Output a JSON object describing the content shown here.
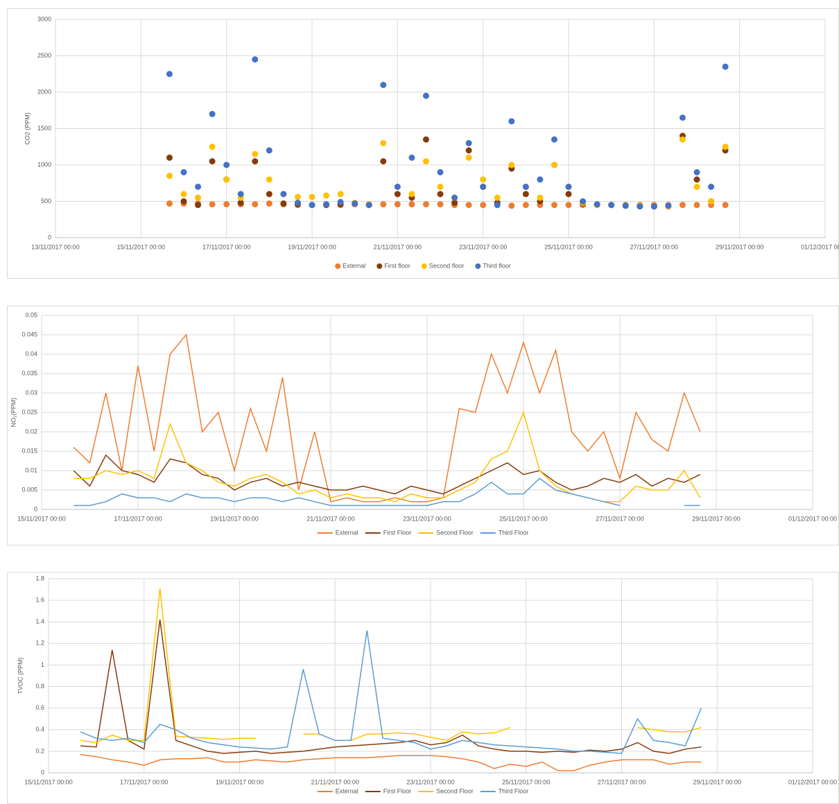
{
  "chart_data": [
    {
      "type": "scatter",
      "y_label": "CO2  (PPM)",
      "x": [
        "15/11/2017 16:00",
        "16/11/2017 00:00",
        "16/11/2017 08:00",
        "16/11/2017 16:00",
        "17/11/2017 00:00",
        "17/11/2017 08:00",
        "17/11/2017 16:00",
        "18/11/2017 00:00",
        "18/11/2017 08:00",
        "18/11/2017 16:00",
        "19/11/2017 00:00",
        "19/11/2017 08:00",
        "19/11/2017 16:00",
        "20/11/2017 00:00",
        "20/11/2017 08:00",
        "20/11/2017 16:00",
        "21/11/2017 00:00",
        "21/11/2017 08:00",
        "21/11/2017 16:00",
        "22/11/2017 00:00",
        "22/11/2017 08:00",
        "22/11/2017 16:00",
        "23/11/2017 00:00",
        "23/11/2017 08:00",
        "23/11/2017 16:00",
        "24/11/2017 00:00",
        "24/11/2017 08:00",
        "24/11/2017 16:00",
        "25/11/2017 00:00",
        "25/11/2017 08:00",
        "25/11/2017 16:00",
        "26/11/2017 00:00",
        "26/11/2017 08:00",
        "26/11/2017 16:00",
        "27/11/2017 00:00",
        "27/11/2017 08:00",
        "27/11/2017 16:00",
        "28/11/2017 00:00",
        "28/11/2017 08:00",
        "28/11/2017 16:00"
      ],
      "xlim": [
        "13/11/2017 00:00",
        "01/12/2017 00:00"
      ],
      "xticks": [
        "13/11/2017 00:00",
        "15/11/2017 00:00",
        "17/11/2017 00:00",
        "19/11/2017 00:00",
        "21/11/2017 00:00",
        "23/11/2017 00:00",
        "25/11/2017 00:00",
        "27/11/2017 00:00",
        "29/11/2017 00:00",
        "01/12/2017 00:00"
      ],
      "ylim": [
        0,
        3000
      ],
      "yticks": [
        0,
        500,
        1000,
        1500,
        2000,
        2500,
        3000
      ],
      "grid": true,
      "series": [
        {
          "name": "External",
          "color": "#ED7D31",
          "values": [
            470,
            470,
            470,
            460,
            460,
            460,
            460,
            470,
            460,
            450,
            450,
            450,
            450,
            460,
            460,
            460,
            460,
            460,
            460,
            460,
            450,
            450,
            450,
            450,
            440,
            450,
            450,
            450,
            450,
            450,
            450,
            450,
            450,
            450,
            450,
            450,
            450,
            450,
            450,
            450
          ]
        },
        {
          "name": "First floor",
          "color": "#843C0C",
          "values": [
            1100,
            500,
            450,
            1050,
            800,
            480,
            1050,
            600,
            470,
            460,
            450,
            450,
            460,
            470,
            450,
            1050,
            600,
            550,
            1350,
            600,
            480,
            1200,
            700,
            480,
            950,
            600,
            500,
            1000,
            600,
            470,
            450,
            450,
            440,
            440,
            430,
            430,
            1400,
            800,
            500,
            1200
          ]
        },
        {
          "name": "Second floor",
          "color": "#FFC000",
          "values": [
            850,
            600,
            550,
            1250,
            800,
            550,
            1150,
            800,
            600,
            560,
            560,
            580,
            600,
            480,
            460,
            1300,
            700,
            600,
            1050,
            700,
            550,
            1100,
            800,
            550,
            1000,
            700,
            550,
            1000,
            700,
            480,
            450,
            450,
            440,
            440,
            430,
            430,
            1350,
            700,
            500,
            1250
          ]
        },
        {
          "name": "Third floor",
          "color": "#4472C4",
          "values": [
            2250,
            900,
            700,
            1700,
            1000,
            600,
            2450,
            1200,
            600,
            480,
            450,
            460,
            490,
            470,
            450,
            2100,
            700,
            1100,
            1950,
            900,
            550,
            1300,
            700,
            450,
            1600,
            700,
            800,
            1350,
            700,
            500,
            460,
            450,
            440,
            430,
            430,
            440,
            1650,
            900,
            700,
            2350
          ]
        }
      ]
    },
    {
      "type": "line",
      "y_label": "NO₂(PPM)",
      "x": [
        "15/11/2017 16:00",
        "16/11/2017 00:00",
        "16/11/2017 08:00",
        "16/11/2017 16:00",
        "17/11/2017 00:00",
        "17/11/2017 08:00",
        "17/11/2017 16:00",
        "18/11/2017 00:00",
        "18/11/2017 08:00",
        "18/11/2017 16:00",
        "19/11/2017 00:00",
        "19/11/2017 08:00",
        "19/11/2017 16:00",
        "20/11/2017 00:00",
        "20/11/2017 08:00",
        "20/11/2017 16:00",
        "21/11/2017 00:00",
        "21/11/2017 08:00",
        "21/11/2017 16:00",
        "22/11/2017 00:00",
        "22/11/2017 08:00",
        "22/11/2017 16:00",
        "23/11/2017 00:00",
        "23/11/2017 08:00",
        "23/11/2017 16:00",
        "24/11/2017 00:00",
        "24/11/2017 08:00",
        "24/11/2017 16:00",
        "25/11/2017 00:00",
        "25/11/2017 08:00",
        "25/11/2017 16:00",
        "26/11/2017 00:00",
        "26/11/2017 08:00",
        "26/11/2017 16:00",
        "27/11/2017 00:00",
        "27/11/2017 08:00",
        "27/11/2017 16:00",
        "28/11/2017 00:00",
        "28/11/2017 08:00",
        "28/11/2017 16:00"
      ],
      "xlim": [
        "15/11/2017 00:00",
        "01/12/2017 00:00"
      ],
      "xticks": [
        "15/11/2017 00:00",
        "17/11/2017 00:00",
        "19/11/2017 00:00",
        "21/11/2017 00:00",
        "23/11/2017 00:00",
        "25/11/2017 00:00",
        "27/11/2017 00:00",
        "29/11/2017 00:00",
        "01/12/2017 00:00"
      ],
      "ylim": [
        0,
        0.05
      ],
      "yticks": [
        0,
        0.005,
        0.01,
        0.015,
        0.02,
        0.025,
        0.03,
        0.035,
        0.04,
        0.045,
        0.05
      ],
      "grid": true,
      "series": [
        {
          "name": "External",
          "color": "#ED7D31",
          "values": [
            0.016,
            0.012,
            0.03,
            0.01,
            0.037,
            0.015,
            0.04,
            0.045,
            0.02,
            0.025,
            0.01,
            0.026,
            0.015,
            0.034,
            0.005,
            0.02,
            0.002,
            0.003,
            0.002,
            0.002,
            0.003,
            0.002,
            0.002,
            0.003,
            0.026,
            0.025,
            0.04,
            0.03,
            0.043,
            0.03,
            0.041,
            0.02,
            0.015,
            0.02,
            0.008,
            0.025,
            0.018,
            0.015,
            0.03,
            0.02
          ]
        },
        {
          "name": "First Floor",
          "color": "#843C0C",
          "values": [
            0.01,
            0.006,
            0.014,
            0.01,
            0.009,
            0.007,
            0.013,
            0.012,
            0.009,
            0.008,
            0.005,
            0.007,
            0.008,
            0.006,
            0.007,
            0.006,
            0.005,
            0.005,
            0.006,
            0.005,
            0.004,
            0.006,
            0.005,
            0.004,
            0.006,
            0.008,
            0.01,
            0.012,
            0.009,
            0.01,
            0.007,
            0.005,
            0.006,
            0.008,
            0.007,
            0.009,
            0.006,
            0.008,
            0.007,
            0.009
          ]
        },
        {
          "name": "Second Floor",
          "color": "#FFC000",
          "values": [
            0.008,
            0.008,
            0.01,
            0.009,
            0.01,
            0.008,
            0.022,
            0.012,
            0.01,
            0.007,
            0.006,
            0.008,
            0.009,
            0.007,
            0.004,
            0.005,
            0.003,
            0.004,
            0.003,
            0.003,
            0.002,
            0.004,
            0.003,
            0.003,
            0.005,
            0.007,
            0.013,
            0.015,
            0.025,
            0.01,
            0.006,
            0.004,
            0.003,
            0.002,
            0.002,
            0.006,
            0.005,
            0.005,
            0.01,
            0.003
          ]
        },
        {
          "name": "Third Floor",
          "color": "#5B9BD5",
          "values": [
            0.001,
            0.001,
            0.002,
            0.004,
            0.003,
            0.003,
            0.002,
            0.004,
            0.003,
            0.003,
            0.002,
            0.003,
            0.003,
            0.002,
            0.003,
            0.002,
            0.001,
            0.001,
            0.001,
            0.001,
            0.001,
            0.001,
            0.001,
            0.002,
            0.002,
            0.004,
            0.007,
            0.004,
            0.004,
            0.008,
            0.005,
            0.004,
            0.003,
            0.002,
            0.001,
            null,
            null,
            null,
            0.001,
            0.001
          ]
        }
      ]
    },
    {
      "type": "line",
      "y_label": "TVOC (PPM)",
      "x": [
        "15/11/2017 16:00",
        "16/11/2017 00:00",
        "16/11/2017 08:00",
        "16/11/2017 16:00",
        "17/11/2017 00:00",
        "17/11/2017 08:00",
        "17/11/2017 16:00",
        "18/11/2017 00:00",
        "18/11/2017 08:00",
        "18/11/2017 16:00",
        "19/11/2017 00:00",
        "19/11/2017 08:00",
        "19/11/2017 16:00",
        "20/11/2017 00:00",
        "20/11/2017 08:00",
        "20/11/2017 16:00",
        "21/11/2017 00:00",
        "21/11/2017 08:00",
        "21/11/2017 16:00",
        "22/11/2017 00:00",
        "22/11/2017 08:00",
        "22/11/2017 16:00",
        "23/11/2017 00:00",
        "23/11/2017 08:00",
        "23/11/2017 16:00",
        "24/11/2017 00:00",
        "24/11/2017 08:00",
        "24/11/2017 16:00",
        "25/11/2017 00:00",
        "25/11/2017 08:00",
        "25/11/2017 16:00",
        "26/11/2017 00:00",
        "26/11/2017 08:00",
        "26/11/2017 16:00",
        "27/11/2017 00:00",
        "27/11/2017 08:00",
        "27/11/2017 16:00",
        "28/11/2017 00:00",
        "28/11/2017 08:00",
        "28/11/2017 16:00"
      ],
      "xlim": [
        "15/11/2017 00:00",
        "01/12/2017 00:00"
      ],
      "xticks": [
        "15/11/2017 00:00",
        "17/11/2017 00:00",
        "19/11/2017 00:00",
        "21/11/2017 00:00",
        "23/11/2017 00:00",
        "25/11/2017 00:00",
        "27/11/2017 00:00",
        "29/11/2017 00:00",
        "01/12/2017 00:00"
      ],
      "ylim": [
        0,
        1.8
      ],
      "yticks": [
        0,
        0.2,
        0.4,
        0.6,
        0.8,
        1,
        1.2,
        1.4,
        1.6,
        1.8
      ],
      "grid": true,
      "series": [
        {
          "name": "External",
          "color": "#ED7D31",
          "values": [
            0.17,
            0.15,
            0.12,
            0.1,
            0.07,
            0.12,
            0.13,
            0.13,
            0.14,
            0.1,
            0.1,
            0.12,
            0.11,
            0.1,
            0.12,
            0.13,
            0.14,
            0.14,
            0.14,
            0.15,
            0.16,
            0.16,
            0.16,
            0.15,
            0.13,
            0.1,
            0.04,
            0.08,
            0.06,
            0.1,
            0.02,
            0.02,
            0.07,
            0.1,
            0.12,
            0.12,
            0.12,
            0.08,
            0.1,
            0.1
          ]
        },
        {
          "name": "First Floor",
          "color": "#843C0C",
          "values": [
            0.25,
            0.24,
            1.14,
            0.3,
            0.22,
            1.42,
            0.3,
            0.25,
            0.2,
            0.18,
            0.19,
            0.2,
            0.18,
            0.19,
            0.2,
            0.22,
            0.24,
            0.25,
            0.26,
            0.27,
            0.28,
            0.3,
            0.26,
            0.28,
            0.35,
            0.25,
            0.22,
            0.2,
            0.2,
            0.19,
            0.2,
            0.19,
            0.21,
            0.2,
            0.22,
            0.28,
            0.2,
            0.18,
            0.22,
            0.24
          ]
        },
        {
          "name": "Second Floor",
          "color": "#FFC000",
          "values": [
            0.3,
            0.28,
            0.35,
            0.3,
            0.3,
            1.71,
            0.34,
            0.33,
            0.32,
            0.31,
            0.32,
            0.32,
            null,
            null,
            0.36,
            0.36,
            null,
            0.3,
            0.36,
            0.36,
            0.37,
            0.36,
            0.33,
            0.3,
            0.38,
            0.36,
            0.37,
            0.42,
            null,
            null,
            null,
            null,
            null,
            null,
            null,
            0.42,
            0.4,
            0.38,
            0.38,
            0.42
          ]
        },
        {
          "name": "Third Floor",
          "color": "#5B9BD5",
          "values": [
            0.38,
            0.32,
            0.3,
            0.32,
            0.28,
            0.45,
            0.4,
            0.32,
            0.28,
            0.26,
            0.24,
            0.23,
            0.22,
            0.24,
            0.96,
            0.36,
            0.3,
            0.3,
            1.32,
            0.32,
            0.3,
            0.28,
            0.22,
            0.25,
            0.3,
            0.28,
            0.26,
            0.25,
            0.24,
            0.23,
            0.22,
            0.2,
            0.2,
            0.19,
            0.18,
            0.5,
            0.3,
            0.28,
            0.25,
            0.6
          ]
        }
      ]
    }
  ]
}
